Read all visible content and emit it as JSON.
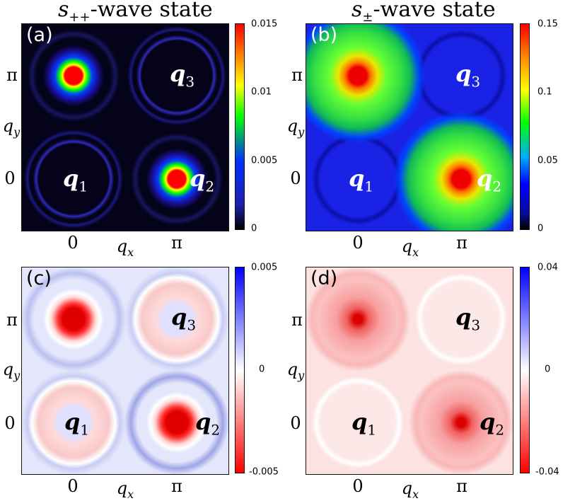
{
  "chart_data": [
    {
      "type": "heatmap",
      "panel": "(a)",
      "title": "s++-wave state",
      "title_symbol": "s",
      "title_sub": "++",
      "title_rest": "-wave state",
      "xlabel": "q_x",
      "ylabel": "q_y",
      "x_ticks": [
        "0",
        "π"
      ],
      "y_ticks": [
        "π",
        "0"
      ],
      "colorbar": {
        "min": 0,
        "max": 0.015,
        "ticks": [
          "0.015",
          "0.01",
          "0.005",
          "0"
        ],
        "colors": [
          "#000000",
          "#2020b0",
          "#0030ff",
          "#00ff00",
          "#ffff00",
          "#ff0000"
        ]
      },
      "points": [
        {
          "label": "q1",
          "q": [
            0,
            0
          ],
          "peak": 0.002
        },
        {
          "label": "q2",
          "q": [
            "π",
            0
          ],
          "peak": 0.015
        },
        {
          "label": "q3",
          "q": [
            "π",
            "π"
          ],
          "peak": 0.002
        },
        {
          "label": "",
          "q": [
            0,
            "π"
          ],
          "peak": 0.015
        }
      ]
    },
    {
      "type": "heatmap",
      "panel": "(b)",
      "title": "s±-wave state",
      "title_symbol": "s",
      "title_sub": "±",
      "title_rest": "-wave state",
      "xlabel": "q_x",
      "ylabel": "q_y",
      "x_ticks": [
        "0",
        "π"
      ],
      "y_ticks": [
        "π",
        "0"
      ],
      "colorbar": {
        "min": 0,
        "max": 0.15,
        "ticks": [
          "0.15",
          "0.1",
          "0.05",
          "0"
        ],
        "colors": [
          "#000000",
          "#0000ff",
          "#00ff00",
          "#ffff00",
          "#ff0000"
        ]
      },
      "points": [
        {
          "label": "q1",
          "q": [
            0,
            0
          ],
          "peak": 0.03
        },
        {
          "label": "q2",
          "q": [
            "π",
            0
          ],
          "peak": 0.15
        },
        {
          "label": "q3",
          "q": [
            "π",
            "π"
          ],
          "peak": 0.03
        },
        {
          "label": "",
          "q": [
            0,
            "π"
          ],
          "peak": 0.15
        }
      ]
    },
    {
      "type": "heatmap",
      "panel": "(c)",
      "xlabel": "q_x",
      "ylabel": "q_y",
      "x_ticks": [
        "0",
        "π"
      ],
      "y_ticks": [
        "π",
        "0"
      ],
      "colorbar": {
        "min": -0.005,
        "max": 0.005,
        "ticks": [
          "0.005",
          "0",
          "-0.005"
        ],
        "colors": [
          "#ff0000",
          "#ffffff",
          "#0000ff"
        ]
      },
      "points": [
        {
          "label": "q1",
          "q": [
            0,
            0
          ],
          "peak": -0.002
        },
        {
          "label": "q2",
          "q": [
            "π",
            0
          ],
          "peak": -0.005
        },
        {
          "label": "q3",
          "q": [
            "π",
            "π"
          ],
          "peak": -0.002
        },
        {
          "label": "",
          "q": [
            0,
            "π"
          ],
          "peak": -0.005
        }
      ]
    },
    {
      "type": "heatmap",
      "panel": "(d)",
      "xlabel": "q_x",
      "ylabel": "q_y",
      "x_ticks": [
        "0",
        "π"
      ],
      "y_ticks": [
        "π",
        "0"
      ],
      "colorbar": {
        "min": -0.04,
        "max": 0.04,
        "ticks": [
          "0.04",
          "0",
          "-0.04"
        ],
        "colors": [
          "#ff0000",
          "#ffffff",
          "#0000ff"
        ]
      },
      "points": [
        {
          "label": "q1",
          "q": [
            0,
            0
          ],
          "peak": 0.0
        },
        {
          "label": "q2",
          "q": [
            "π",
            0
          ],
          "peak": -0.03
        },
        {
          "label": "q3",
          "q": [
            "π",
            "π"
          ],
          "peak": 0.0
        },
        {
          "label": "",
          "q": [
            0,
            "π"
          ],
          "peak": -0.03
        }
      ]
    }
  ],
  "labels": {
    "q_symbol": "q",
    "q1_sub": "1",
    "q2_sub": "2",
    "q3_sub": "3",
    "qx_symbol": "q",
    "qx_sub": "x",
    "qy_symbol": "q",
    "qy_sub": "y"
  }
}
